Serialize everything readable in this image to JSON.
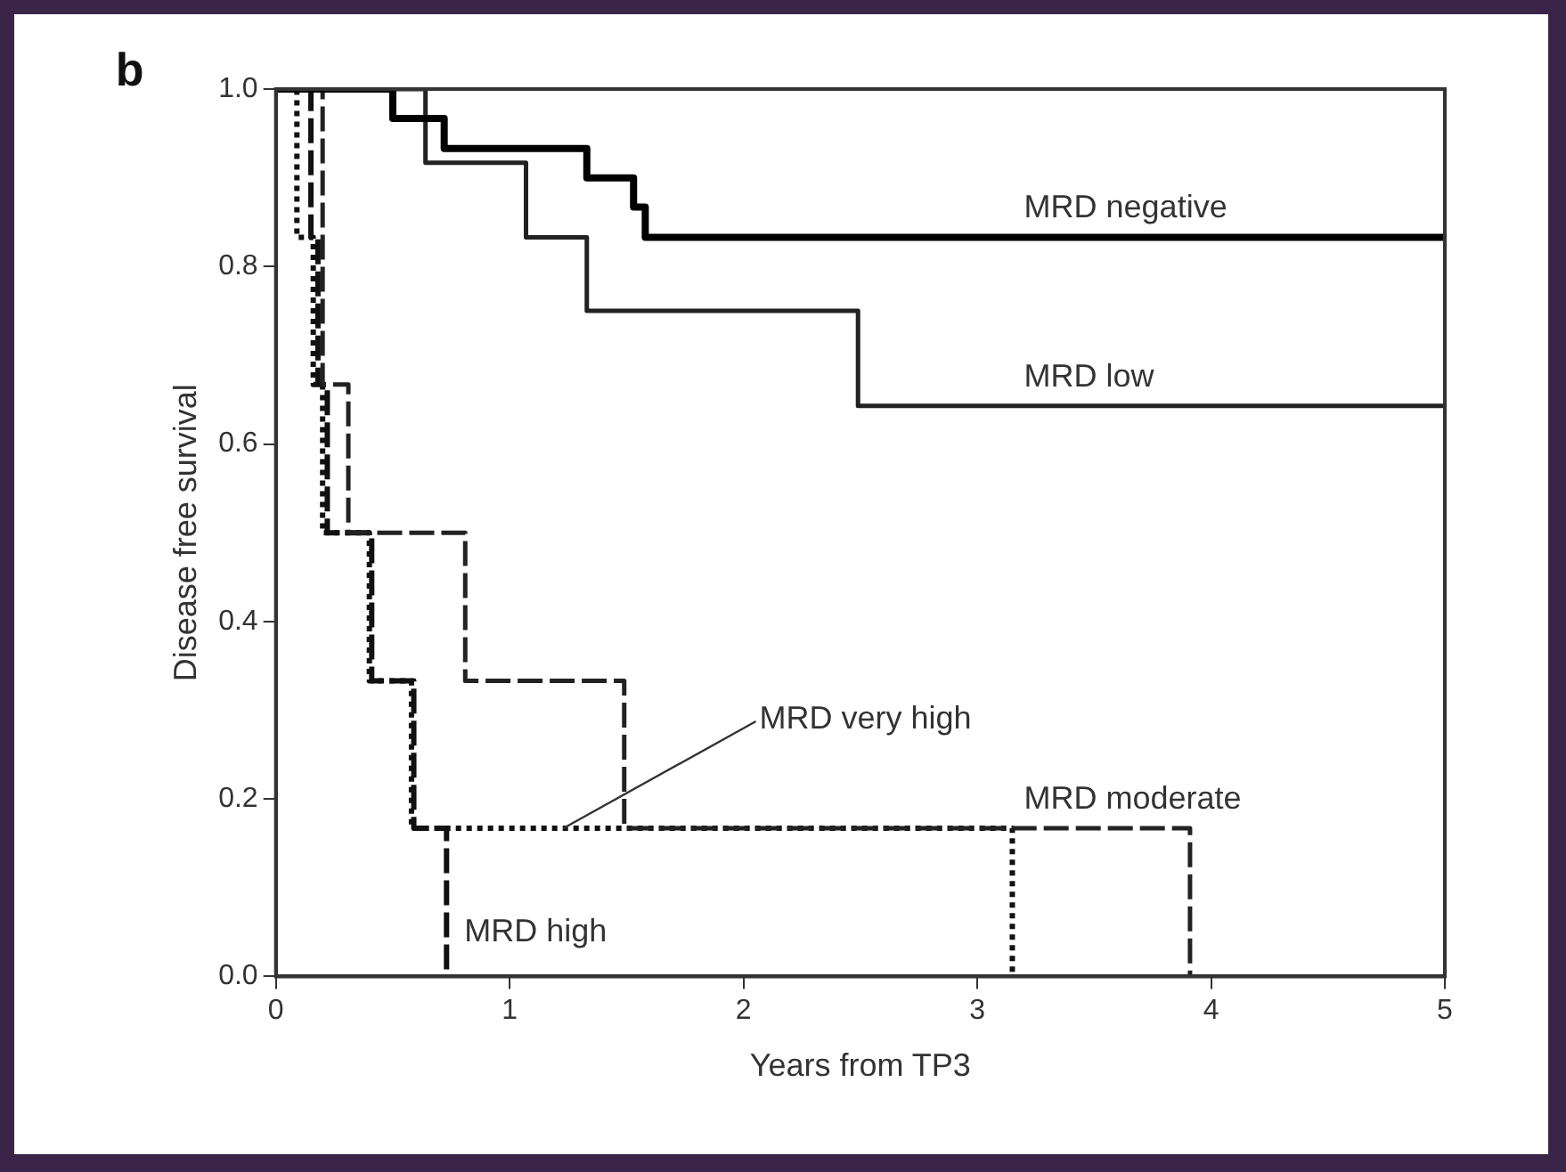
{
  "chart_data": {
    "type": "step",
    "title": "b",
    "xlabel": "Years from TP3",
    "ylabel": "Disease free survival",
    "xlim": [
      0,
      5
    ],
    "xticks": [
      0,
      1,
      2,
      3,
      4,
      5
    ],
    "ylim": [
      0,
      1
    ],
    "yticks": [
      {
        "value": 0,
        "label": "0.0"
      },
      {
        "value": 0.2,
        "label": "0.2"
      },
      {
        "value": 0.4,
        "label": "0.4"
      },
      {
        "value": 0.6,
        "label": "0.6"
      },
      {
        "value": 0.8,
        "label": "0.8"
      },
      {
        "value": 1,
        "label": "1.0"
      }
    ],
    "grid": false,
    "legend": false,
    "marker": "none",
    "series": [
      {
        "color": "#000000",
        "line_style": "solid",
        "x": [
          0,
          0.5,
          0.72,
          1.33,
          1.53,
          1.58,
          5
        ],
        "values": [
          1,
          0.967,
          0.933,
          0.9,
          0.867,
          0.833,
          0.833
        ]
      },
      {
        "color": "#222222",
        "line_style": "solid",
        "x": [
          0,
          0.64,
          1.07,
          1.33,
          2.49,
          5
        ],
        "values": [
          1,
          0.917,
          0.833,
          0.75,
          0.643,
          0.643
        ]
      },
      {
        "color": "#222222",
        "line_style": "dashed",
        "x": [
          0,
          0.2,
          0.31,
          0.81,
          1.49,
          3.91
        ],
        "values": [
          1,
          0.667,
          0.5,
          0.333,
          0.167,
          0
        ]
      },
      {
        "color": "#111111",
        "line_style": "dashed",
        "x": [
          0,
          0.15,
          0.18,
          0.22,
          0.41,
          0.59,
          0.73
        ],
        "values": [
          1,
          0.833,
          0.667,
          0.5,
          0.333,
          0.167,
          0
        ]
      },
      {
        "color": "#111111",
        "line_style": "dotted",
        "x": [
          0,
          0.09,
          0.16,
          0.2,
          0.4,
          0.58,
          3.15
        ],
        "values": [
          1,
          0.833,
          0.667,
          0.5,
          0.333,
          0.167,
          0
        ]
      }
    ],
    "annotations": [
      {
        "text": "MRD negative",
        "x": 3.2,
        "y": 0.833
      },
      {
        "text": "MRD low",
        "x": 3.2,
        "y": 0.643
      },
      {
        "text": "MRD very high",
        "x": 1.23,
        "y": 0.167
      },
      {
        "text": "MRD moderate",
        "x": 3.2,
        "y": 0.167
      },
      {
        "text": "MRD high",
        "x": 0.73,
        "y": 0.05
      }
    ]
  }
}
